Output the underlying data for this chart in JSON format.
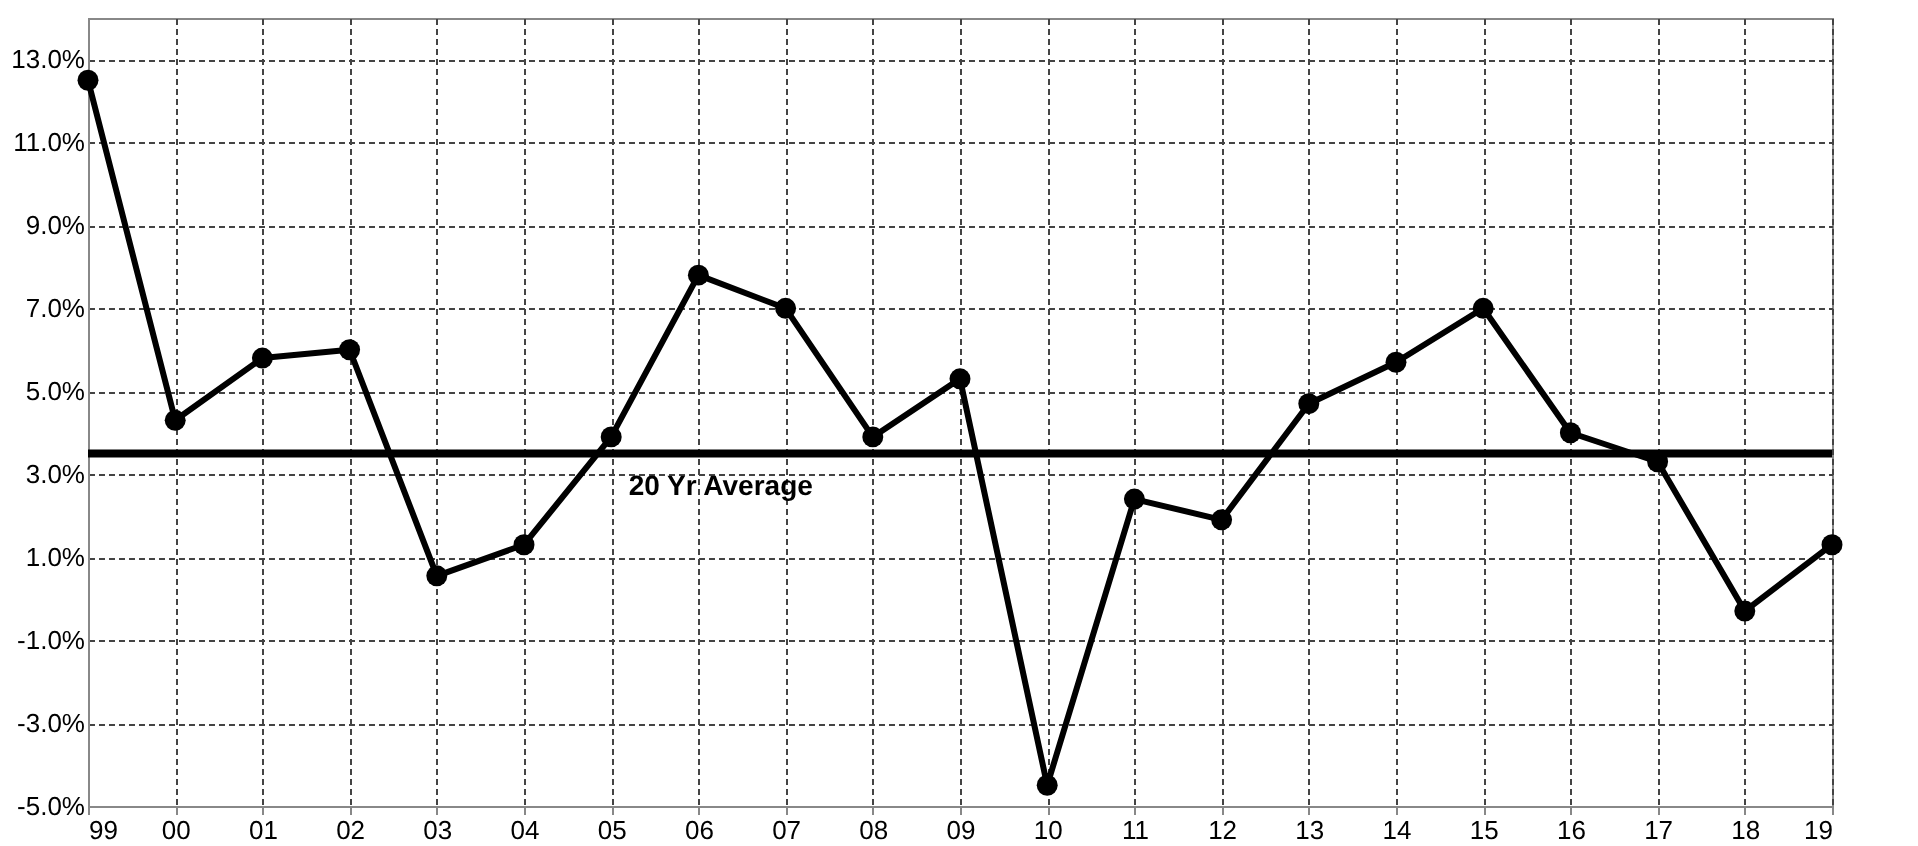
{
  "chart_data": {
    "type": "line",
    "categories": [
      "99",
      "00",
      "01",
      "02",
      "03",
      "04",
      "05",
      "06",
      "07",
      "08",
      "09",
      "10",
      "11",
      "12",
      "13",
      "14",
      "15",
      "16",
      "17",
      "18",
      "19"
    ],
    "series": [
      {
        "color": "#000000",
        "values": [
          12.5,
          4.3,
          5.8,
          6.0,
          0.55,
          1.3,
          3.9,
          7.8,
          7.0,
          3.9,
          5.3,
          -4.5,
          2.4,
          1.9,
          4.7,
          5.7,
          7.0,
          4.0,
          3.3,
          -0.3,
          1.3
        ]
      }
    ],
    "ylim": [
      -5,
      14
    ],
    "yticks": [
      {
        "value": -5,
        "label": "-5.0%"
      },
      {
        "value": -3,
        "label": "-3.0%"
      },
      {
        "value": -1,
        "label": "-1.0%"
      },
      {
        "value": 1,
        "label": "1.0%"
      },
      {
        "value": 3,
        "label": "3.0%"
      },
      {
        "value": 5,
        "label": "5.0%"
      },
      {
        "value": 7,
        "label": "7.0%"
      },
      {
        "value": 9,
        "label": "9.0%"
      },
      {
        "value": 11,
        "label": "11.0%"
      },
      {
        "value": 13,
        "label": "13.0%"
      }
    ],
    "ref_lines": [
      {
        "axis": "y",
        "value": 3.5,
        "label": "20 Yr Average",
        "color": "#000000",
        "line_style": "solid"
      }
    ],
    "grid": true,
    "marker": "circle",
    "line_style": "solid"
  }
}
